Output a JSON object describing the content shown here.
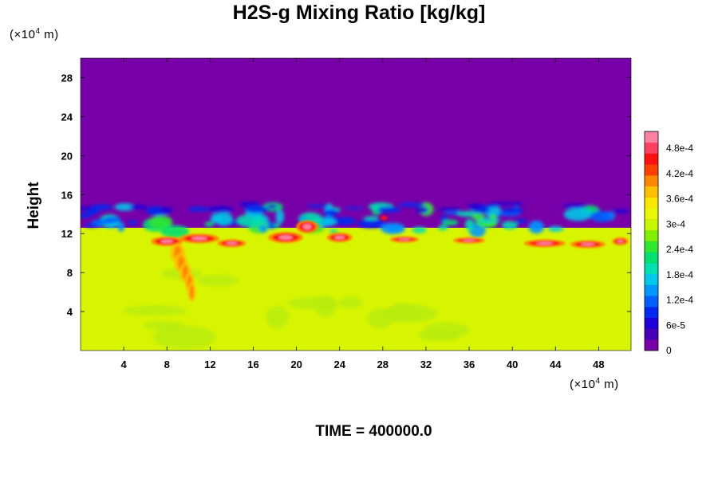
{
  "title": "H2S-g Mixing Ratio [kg/kg]",
  "y_unit_prefix": "(×10",
  "y_unit_exp": "4",
  "y_unit_suffix": " m)",
  "x_unit_prefix": "(×10",
  "x_unit_exp": "4",
  "x_unit_suffix": " m)",
  "time_label": "TIME = 400000.0",
  "colors": {
    "background_field": "#7800a8",
    "colorbar": [
      "#7800a8",
      "#4800b8",
      "#2000d8",
      "#0028f0",
      "#0060ff",
      "#0098ff",
      "#00c8e8",
      "#00e0b0",
      "#00e070",
      "#30e830",
      "#80f000",
      "#c8f800",
      "#e8f800",
      "#f8e800",
      "#ffc000",
      "#ff8800",
      "#ff4000",
      "#ff1010",
      "#ff4060",
      "#ff80a0"
    ]
  },
  "chart_data": {
    "type": "heatmap",
    "title": "H2S-g Mixing Ratio [kg/kg]",
    "xlabel": "(×10^4 m)",
    "ylabel": "Height",
    "y_unit": "(×10^4 m)",
    "xlim": [
      0,
      51
    ],
    "ylim": [
      0,
      30
    ],
    "x_ticks": [
      4,
      8,
      12,
      16,
      20,
      24,
      28,
      32,
      36,
      40,
      44,
      48
    ],
    "y_ticks": [
      4,
      8,
      12,
      16,
      20,
      24,
      28
    ],
    "colorbar": {
      "min": 0,
      "max": 0.00052,
      "tick_values": [
        0,
        6e-05,
        0.00012,
        0.00018,
        0.00024,
        0.0003,
        0.00036,
        0.00042,
        0.00048
      ],
      "tick_labels": [
        "0",
        "6e-5",
        "1.2e-4",
        "1.8e-4",
        "2.4e-4",
        "3e-4",
        "3.6e-4",
        "4.2e-4",
        "4.8e-4"
      ]
    },
    "field_description_values": {
      "upper_region_value": 0,
      "lower_region_value": 0.00035,
      "interface_height_approx": 13,
      "peak_value_approx": 0.0005
    }
  }
}
